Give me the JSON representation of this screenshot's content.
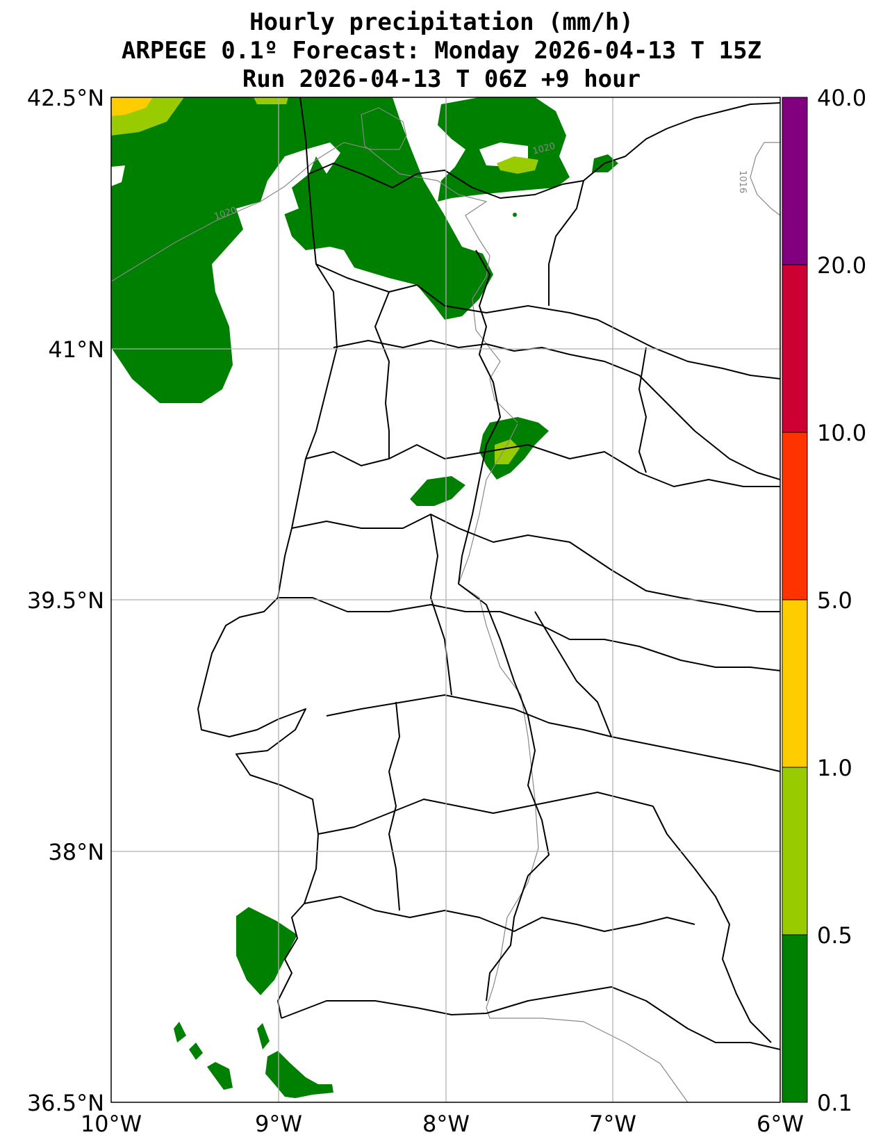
{
  "title": {
    "line1": "Hourly precipitation (mm/h)",
    "line2": "ARPEGE 0.1º Forecast: Monday 2026-04-13 T 15Z",
    "line3": "Run 2026-04-13 T 06Z +9 hour"
  },
  "map": {
    "region": "Portugal",
    "lon_range": [
      -10,
      -6
    ],
    "lat_range": [
      36.5,
      42.5
    ],
    "lat_ticks": [
      "42.5°N",
      "41°N",
      "39.5°N",
      "38°N",
      "36.5°N"
    ],
    "lon_ticks": [
      "10°W",
      "9°W",
      "8°W",
      "7°W",
      "6°W"
    ],
    "grid": true,
    "isobar_labels": [
      "1020",
      "1020",
      "1016"
    ],
    "contour_colors": {
      "isobar": "#888888",
      "borders": "#000000",
      "gridline": "#b0b0b0"
    }
  },
  "colorbar": {
    "levels": [
      "0.1",
      "0.5",
      "1.0",
      "5.0",
      "10.0",
      "20.0",
      "40.0"
    ],
    "colors": [
      "#008000",
      "#99cc00",
      "#ffcc00",
      "#ff3300",
      "#cc0033",
      "#800080"
    ]
  }
}
